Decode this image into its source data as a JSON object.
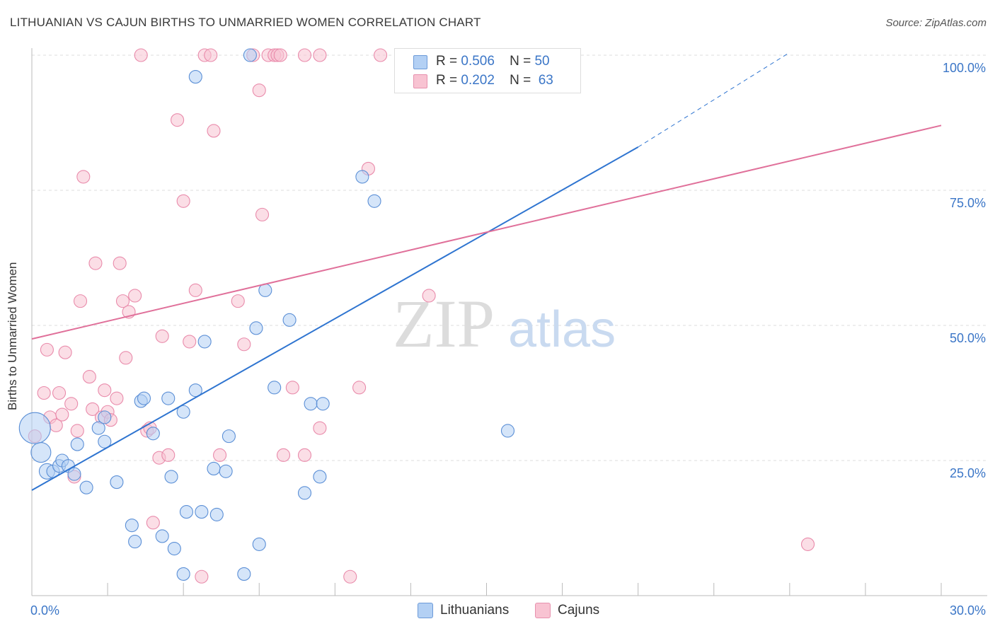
{
  "header": {
    "title": "LITHUANIAN VS CAJUN BIRTHS TO UNMARRIED WOMEN CORRELATION CHART",
    "source": "Source: ZipAtlas.com"
  },
  "watermark": {
    "zip": "ZIP",
    "atlas": "atlas"
  },
  "legend": {
    "rows": [
      {
        "r_label": "R =",
        "r_value": "0.506",
        "n_label": "N =",
        "n_value": "50",
        "color": "#a9c8f0"
      },
      {
        "r_label": "R =",
        "r_value": "0.202",
        "n_label": "N =",
        "n_value": "63",
        "color": "#f7b7c9"
      }
    ]
  },
  "bottom_legend": [
    {
      "label": "Lithuanians",
      "color": "#b3d0f4"
    },
    {
      "label": "Cajuns",
      "color": "#f8c3d2"
    }
  ],
  "chart_data": {
    "type": "scatter",
    "title": "LITHUANIAN VS CAJUN BIRTHS TO UNMARRIED WOMEN CORRELATION CHART",
    "xlabel": "",
    "ylabel": "Births to Unmarried Women",
    "xlim": [
      0,
      30
    ],
    "ylim": [
      0,
      100
    ],
    "x_tick_labels": [
      "0.0%",
      "30.0%"
    ],
    "y_tick_labels": [
      "25.0%",
      "50.0%",
      "75.0%",
      "100.0%"
    ],
    "y_ticks": [
      25,
      50,
      75,
      100
    ],
    "grid": true,
    "legend_position": "top-center",
    "series": [
      {
        "name": "Lithuanians",
        "color": "#5b8fd6",
        "fill": "#b3d0f4",
        "trend": {
          "x": [
            0,
            20
          ],
          "y": [
            19.5,
            83.0
          ],
          "dashed_to": [
            25,
            100.5
          ],
          "color": "#2e74d0"
        },
        "points": [
          [
            0.1,
            31,
            22
          ],
          [
            0.3,
            26.5,
            14
          ],
          [
            0.5,
            23,
            11
          ],
          [
            0.7,
            23,
            9
          ],
          [
            0.9,
            24,
            9
          ],
          [
            1.0,
            25,
            9
          ],
          [
            1.2,
            24,
            9
          ],
          [
            1.4,
            22.5,
            9
          ],
          [
            1.5,
            28,
            9
          ],
          [
            1.8,
            20,
            9
          ],
          [
            2.2,
            31,
            9
          ],
          [
            2.4,
            28.5,
            9
          ],
          [
            2.4,
            33,
            9
          ],
          [
            2.8,
            21,
            9
          ],
          [
            3.3,
            13,
            9
          ],
          [
            3.4,
            10,
            9
          ],
          [
            3.6,
            36,
            9
          ],
          [
            3.7,
            36.5,
            9
          ],
          [
            4.0,
            30,
            9
          ],
          [
            4.3,
            11,
            9
          ],
          [
            4.6,
            22,
            9
          ],
          [
            4.5,
            36.5,
            9
          ],
          [
            4.7,
            8.7,
            9
          ],
          [
            5.0,
            4,
            9
          ],
          [
            5.0,
            34,
            9
          ],
          [
            5.4,
            38,
            9
          ],
          [
            5.1,
            15.5,
            9
          ],
          [
            5.4,
            96,
            9
          ],
          [
            5.6,
            15.5,
            9
          ],
          [
            5.7,
            47,
            9
          ],
          [
            6.0,
            23.5,
            9
          ],
          [
            6.1,
            15,
            9
          ],
          [
            6.4,
            23,
            9
          ],
          [
            6.5,
            29.5,
            9
          ],
          [
            7.0,
            4,
            9
          ],
          [
            7.2,
            100,
            9
          ],
          [
            7.4,
            49.5,
            9
          ],
          [
            7.5,
            9.5,
            9
          ],
          [
            7.7,
            56.5,
            9
          ],
          [
            8.0,
            38.5,
            9
          ],
          [
            8.5,
            51,
            9
          ],
          [
            9.0,
            19,
            9
          ],
          [
            9.2,
            35.5,
            9
          ],
          [
            9.5,
            22,
            9
          ],
          [
            9.6,
            35.5,
            9
          ],
          [
            10.9,
            77.5,
            9
          ],
          [
            11.3,
            73,
            9
          ],
          [
            12.3,
            100,
            9
          ],
          [
            15.6,
            100,
            9
          ],
          [
            15.7,
            30.5,
            9
          ]
        ]
      },
      {
        "name": "Cajuns",
        "color": "#e98bab",
        "fill": "#f8c3d2",
        "trend": {
          "x": [
            0,
            30
          ],
          "y": [
            47.5,
            87
          ],
          "color": "#e0709a"
        },
        "points": [
          [
            0.1,
            29.5,
            9
          ],
          [
            0.4,
            37.5,
            9
          ],
          [
            0.5,
            45.5,
            9
          ],
          [
            0.6,
            33,
            9
          ],
          [
            0.8,
            31.5,
            9
          ],
          [
            0.9,
            37.5,
            9
          ],
          [
            1.0,
            33.5,
            9
          ],
          [
            1.1,
            45,
            9
          ],
          [
            1.3,
            35.5,
            9
          ],
          [
            1.4,
            22,
            9
          ],
          [
            1.5,
            30.5,
            9
          ],
          [
            1.6,
            54.5,
            9
          ],
          [
            1.7,
            77.5,
            9
          ],
          [
            1.9,
            40.5,
            9
          ],
          [
            2.0,
            34.5,
            9
          ],
          [
            2.1,
            61.5,
            9
          ],
          [
            2.3,
            33,
            9
          ],
          [
            2.4,
            38,
            9
          ],
          [
            2.5,
            34,
            9
          ],
          [
            2.6,
            32.5,
            9
          ],
          [
            2.8,
            36.5,
            9
          ],
          [
            2.9,
            61.5,
            9
          ],
          [
            3.0,
            54.5,
            9
          ],
          [
            3.1,
            44,
            9
          ],
          [
            3.2,
            52.5,
            9
          ],
          [
            3.4,
            55.5,
            9
          ],
          [
            3.6,
            100,
            9
          ],
          [
            3.8,
            30.5,
            9
          ],
          [
            3.9,
            31,
            9
          ],
          [
            4.0,
            13.5,
            9
          ],
          [
            4.2,
            25.5,
            9
          ],
          [
            4.3,
            48,
            9
          ],
          [
            4.5,
            26,
            9
          ],
          [
            4.8,
            88,
            9
          ],
          [
            5.0,
            73,
            9
          ],
          [
            5.2,
            47,
            9
          ],
          [
            5.4,
            56.5,
            9
          ],
          [
            5.6,
            3.5,
            9
          ],
          [
            5.7,
            100,
            9
          ],
          [
            5.9,
            100,
            9
          ],
          [
            6.0,
            86,
            9
          ],
          [
            6.2,
            26,
            9
          ],
          [
            6.8,
            54.5,
            9
          ],
          [
            7.0,
            46.5,
            9
          ],
          [
            7.3,
            100,
            9
          ],
          [
            7.5,
            93.5,
            9
          ],
          [
            7.6,
            70.5,
            9
          ],
          [
            7.8,
            100,
            9
          ],
          [
            8.0,
            100,
            9
          ],
          [
            8.1,
            100,
            9
          ],
          [
            8.3,
            26,
            9
          ],
          [
            8.6,
            38.5,
            9
          ],
          [
            8.2,
            100,
            9
          ],
          [
            9.0,
            26,
            9
          ],
          [
            9.0,
            100,
            9
          ],
          [
            9.5,
            100,
            9
          ],
          [
            9.5,
            31,
            9
          ],
          [
            10.5,
            3.5,
            9
          ],
          [
            10.8,
            38.5,
            9
          ],
          [
            11.1,
            79,
            9
          ],
          [
            11.5,
            100,
            9
          ],
          [
            13.1,
            55.5,
            9
          ],
          [
            25.6,
            9.5,
            9
          ]
        ]
      }
    ]
  }
}
